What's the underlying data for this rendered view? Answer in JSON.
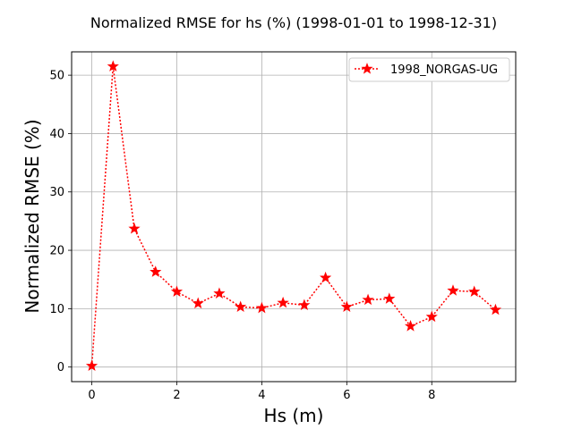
{
  "chart_data": {
    "type": "line",
    "title": "Normalized RMSE for hs (%) (1998-01-01 to 1998-12-31)",
    "xlabel": "Hs (m)",
    "ylabel": "Normalized RMSE (%)",
    "xlim": [
      -0.475,
      9.975
    ],
    "ylim": [
      -2.5,
      54.0
    ],
    "xticks": [
      0,
      2,
      4,
      6,
      8
    ],
    "yticks": [
      0,
      10,
      20,
      30,
      40,
      50
    ],
    "grid": true,
    "legend_position": "top-right",
    "series": [
      {
        "name": "1998_NORGAS-UG",
        "color": "#ff0000",
        "marker": "star",
        "line_style": "dotted",
        "x": [
          0,
          0.5,
          1.0,
          1.5,
          2.0,
          2.5,
          3.0,
          3.5,
          4.0,
          4.5,
          5.0,
          5.5,
          6.0,
          6.5,
          7.0,
          7.5,
          8.0,
          8.5,
          9.0,
          9.5
        ],
        "y": [
          0.2,
          51.5,
          23.7,
          16.3,
          12.9,
          10.9,
          12.6,
          10.3,
          10.1,
          11.0,
          10.6,
          15.3,
          10.3,
          11.5,
          11.7,
          7.0,
          8.6,
          13.1,
          12.9,
          9.8
        ]
      }
    ]
  }
}
